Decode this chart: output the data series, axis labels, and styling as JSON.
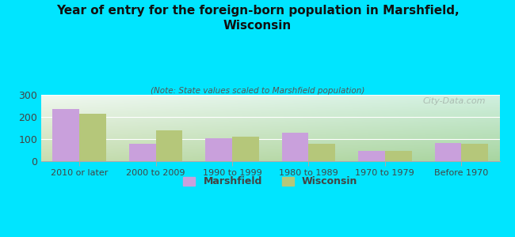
{
  "title": "Year of entry for the foreign-born population in Marshfield,\nWisconsin",
  "subtitle": "(Note: State values scaled to Marshfield population)",
  "categories": [
    "2010 or later",
    "2000 to 2009",
    "1990 to 1999",
    "1980 to 1989",
    "1970 to 1979",
    "Before 1970"
  ],
  "marshfield_values": [
    237,
    80,
    105,
    130,
    45,
    82
  ],
  "wisconsin_values": [
    215,
    140,
    112,
    80,
    45,
    80
  ],
  "marshfield_color": "#c9a0dc",
  "wisconsin_color": "#b5c77a",
  "background_color": "#00e5ff",
  "ylim": [
    0,
    300
  ],
  "yticks": [
    0,
    100,
    200,
    300
  ],
  "bar_width": 0.35,
  "watermark": "City-Data.com",
  "legend_marshfield": "Marshfield",
  "legend_wisconsin": "Wisconsin"
}
